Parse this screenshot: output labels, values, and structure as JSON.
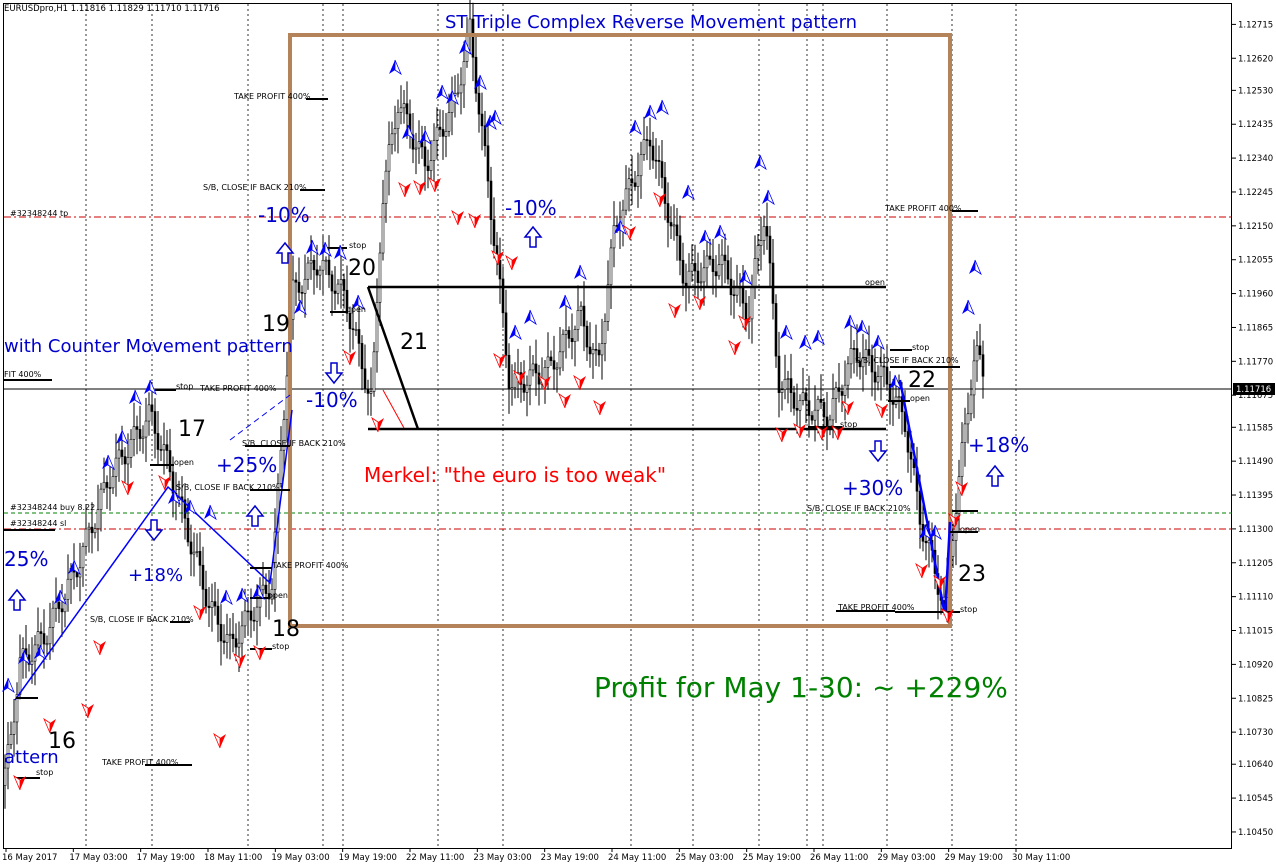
{
  "window": {
    "symbol_line": "EURUSDpro,H1  1.11816 1.11829 1.11710 1.11716",
    "current_price_tag": "1.11716"
  },
  "chart_data": {
    "type": "candlestick",
    "title": "ST Triple Complex Reverse Movement pattern",
    "y_axis_ticks": [
      "1.12715",
      "1.12620",
      "1.12530",
      "1.12435",
      "1.12340",
      "1.12245",
      "1.12150",
      "1.12055",
      "1.11960",
      "1.11865",
      "1.11770",
      "1.11675",
      "1.11585",
      "1.11490",
      "1.11395",
      "1.11300",
      "1.11205",
      "1.11110",
      "1.11015",
      "1.10920",
      "1.10825",
      "1.10730",
      "1.10640",
      "1.10545",
      "1.10450"
    ],
    "ylim": [
      1.10405,
      1.12775
    ],
    "x_axis_ticks": [
      "16 May 2017",
      "17 May 03:00",
      "17 May 19:00",
      "18 May 11:00",
      "19 May 03:00",
      "19 May 19:00",
      "22 May 11:00",
      "23 May 03:00",
      "23 May 19:00",
      "24 May 11:00",
      "25 May 03:00",
      "25 May 19:00",
      "26 May 11:00",
      "29 May 03:00",
      "29 May 19:00",
      "30 May 11:00"
    ],
    "grid": true,
    "price_range_approx": {
      "start": 1.1062,
      "max": 1.1272,
      "min": 1.1052,
      "last": 1.11716
    },
    "annotations": {
      "partial_pattern_label": "with Counter Movement pattern",
      "partial_pattern_label_2": "attern",
      "wave_numbers": [
        "16",
        "17",
        "18",
        "19",
        "20",
        "21",
        "22",
        "23"
      ],
      "percents": [
        "25%",
        "+18%",
        "+25%",
        "-10%",
        "-10%",
        "-10%",
        "+30%",
        "+18%"
      ],
      "news": "Merkel: \"the euro is too weak\"",
      "profit": "Profit for May 1-30: ~ +229%",
      "order_labels": {
        "tp": "#32348244 tp",
        "buy": "#32348244 buy  8.22",
        "sl": "#32348244 sl",
        "take_profit": "TAKE PROFIT 400%",
        "close_if_back": "S/B, CLOSE IF BACK 210%",
        "stop": "stop",
        "open": "open",
        "fit": "FIT 400%"
      }
    }
  },
  "colors": {
    "axis": "#000000",
    "grid": "#000000",
    "box": "#B5835A",
    "pattern_text": "#0000CC",
    "news_text": "#FF0000",
    "profit_text": "#008000",
    "arrow_up": "#0000FF",
    "arrow_down": "#FF0000",
    "tp_line": "#CC0000",
    "buy_line": "#008000"
  }
}
